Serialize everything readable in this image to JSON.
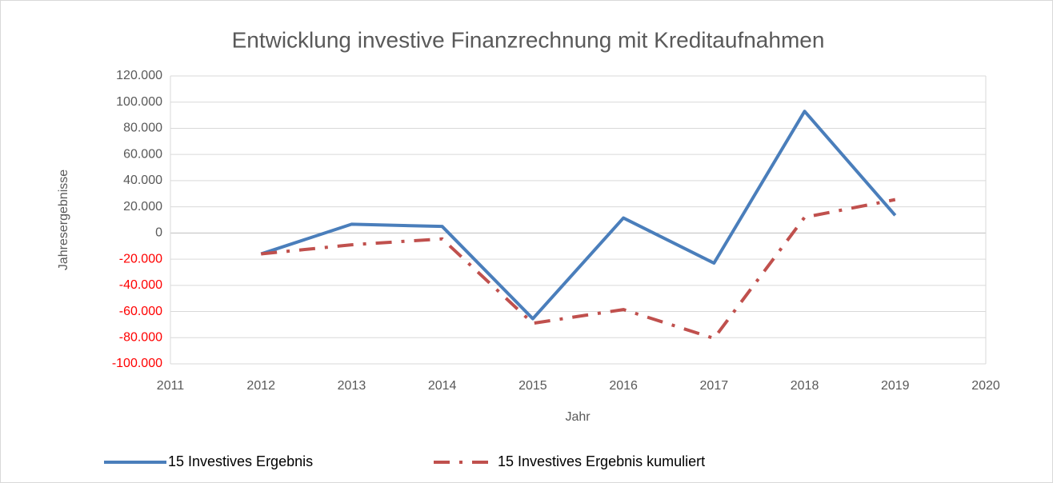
{
  "chart_data": {
    "type": "line",
    "title": "Entwicklung investive Finanzrechnung mit Kreditaufnahmen",
    "xlabel": "Jahr",
    "ylabel": "Jahresergebnisse",
    "x": [
      2012,
      2013,
      2014,
      2015,
      2016,
      2017,
      2018,
      2019
    ],
    "series": [
      {
        "name": "15 Investives Ergebnis",
        "color": "#4a7ebb",
        "dash": "solid",
        "values": [
          -16000,
          6700,
          5000,
          -65500,
          11500,
          -23000,
          93000,
          13500
        ]
      },
      {
        "name": "15 Investives Ergebnis kumuliert",
        "color": "#c0504d",
        "dash": "dash-dot",
        "values": [
          -16000,
          -9000,
          -4500,
          -69000,
          -58500,
          -80500,
          12000,
          25500
        ]
      }
    ],
    "xlim": [
      2011,
      2020
    ],
    "xticks": [
      2011,
      2012,
      2013,
      2014,
      2015,
      2016,
      2017,
      2018,
      2019,
      2020
    ],
    "ylim": [
      -100000,
      120000
    ],
    "yticks": [
      {
        "value": -100000,
        "label": "-100.000"
      },
      {
        "value": -80000,
        "label": "-80.000"
      },
      {
        "value": -60000,
        "label": "-60.000"
      },
      {
        "value": -40000,
        "label": "-40.000"
      },
      {
        "value": -20000,
        "label": "-20.000"
      },
      0,
      {
        "value": 20000,
        "label": "20.000"
      },
      {
        "value": 40000,
        "label": "40.000"
      },
      {
        "value": 60000,
        "label": "60.000"
      },
      {
        "value": 80000,
        "label": "80.000"
      },
      {
        "value": 100000,
        "label": "100.000"
      },
      {
        "value": 120000,
        "label": "120.000"
      }
    ],
    "grid": true,
    "legend": "bottom",
    "negative_tick_color": "#ff0000"
  }
}
